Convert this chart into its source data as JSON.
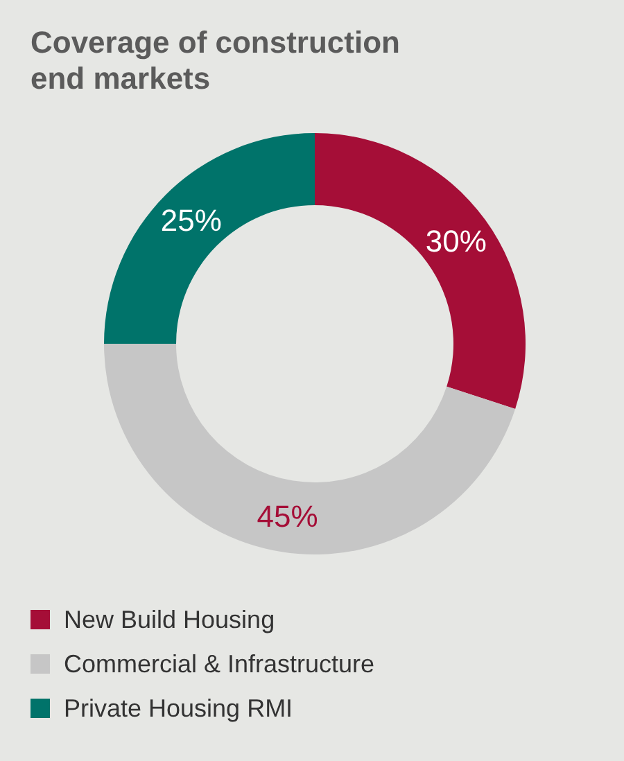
{
  "chart_data": {
    "type": "donut",
    "title": "Coverage of construction end markets",
    "categories": [
      "New Build Housing",
      "Commercial & Infrastructure",
      "Private Housing RMI"
    ],
    "values": [
      30,
      45,
      25
    ],
    "value_labels": [
      "30%",
      "45%",
      "25%"
    ],
    "colors": [
      "#a50e37",
      "#c6c6c6",
      "#00736a"
    ],
    "legend": "bottom"
  }
}
